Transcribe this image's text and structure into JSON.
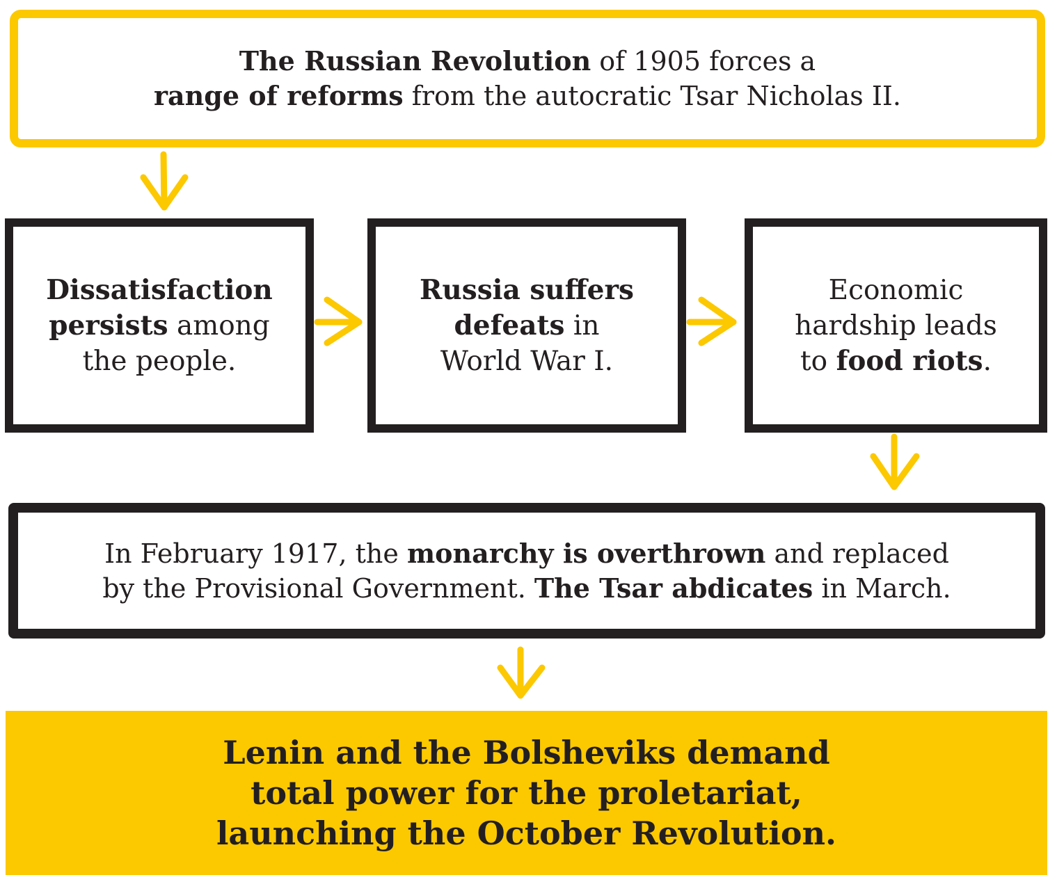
{
  "nodes": {
    "top": {
      "p1": "The Russian Revolution",
      "p2": " of 1905 forces a",
      "p3": "range of reforms",
      "p4": " from the autocratic Tsar Nicholas II."
    },
    "box1": {
      "p1": "Dissatisfaction",
      "p2": "persists",
      "p3": " among",
      "p4": "the people."
    },
    "box2": {
      "p1": "Russia suffers",
      "p2": "defeats",
      "p3": " in",
      "p4": "World War I."
    },
    "box3": {
      "p1": "Economic",
      "p2": "hardship leads",
      "p3": "to ",
      "p4": "food riots",
      "p5": "."
    },
    "wide": {
      "p1": "In February 1917, the ",
      "p2": "monarchy is overthrown",
      "p3": " and replaced",
      "p4": "by the Provisional Government. ",
      "p5": "The Tsar abdicates",
      "p6": " in March."
    },
    "final": {
      "line1": "Lenin and the Bolsheviks demand",
      "line2": "total power for the proletariat,",
      "line3": "launching the October Revolution."
    }
  },
  "colors": {
    "accent_yellow": "#fcc800",
    "ink": "#231f20",
    "background": "#ffffff"
  }
}
